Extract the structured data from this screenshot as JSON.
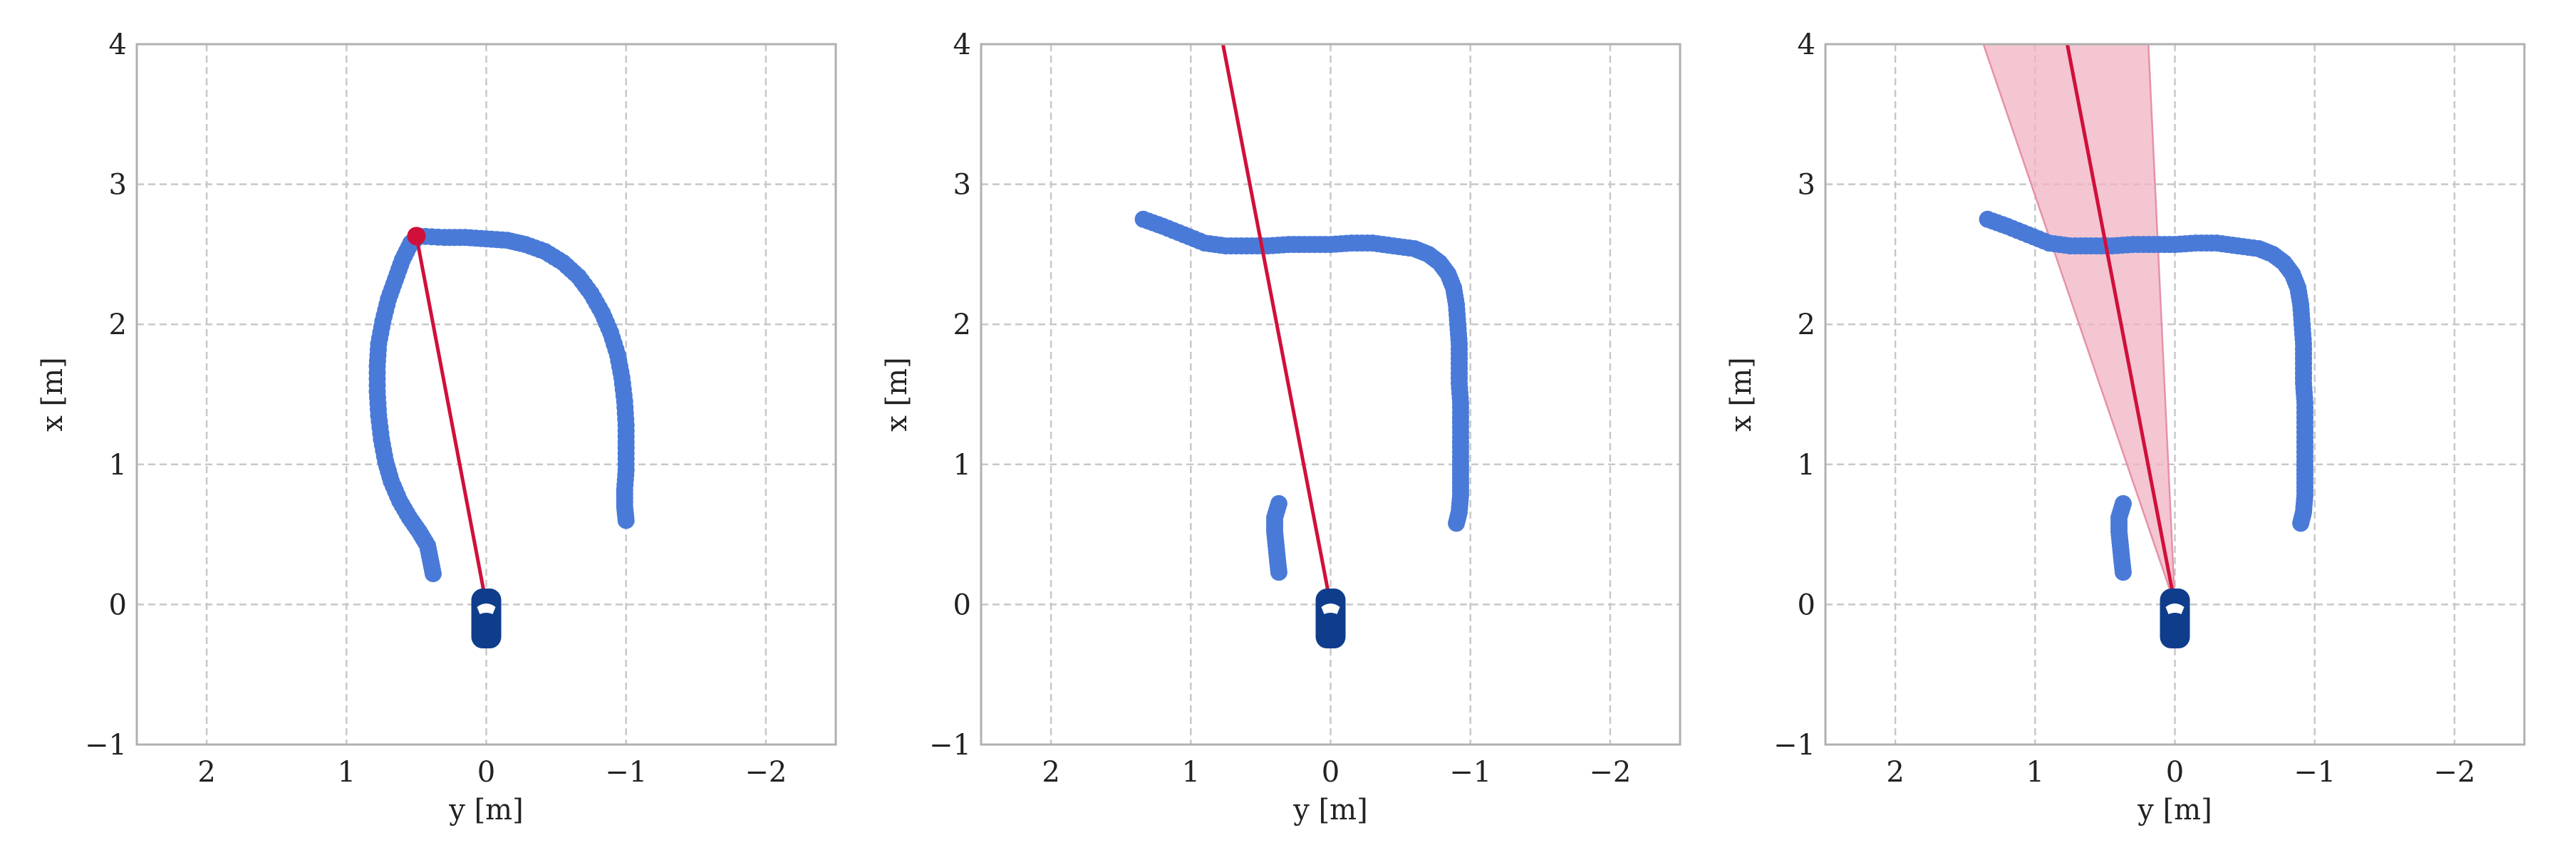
{
  "colors": {
    "trajectory": "#4a7ad8",
    "ray": "#d0103a",
    "cone_fill": "#f0b3c2",
    "cone_edge": "#e691a8",
    "car_body": "#0f3d8c",
    "car_window": "#ffffff",
    "grid": "#c8c8c8",
    "frame": "#b0b0b0"
  },
  "chart_data": [
    {
      "type": "scatter",
      "title": "",
      "xlabel": "y [m]",
      "ylabel": "x [m]",
      "xlim": [
        2.5,
        -2.5
      ],
      "ylim": [
        -1,
        4
      ],
      "xticks": [
        2,
        1,
        0,
        -1,
        -2
      ],
      "xtick_labels": [
        "2",
        "1",
        "0",
        "−1",
        "−2"
      ],
      "yticks": [
        -1,
        0,
        1,
        2,
        3,
        4
      ],
      "ytick_labels": [
        "−1",
        "0",
        "1",
        "2",
        "3",
        "4"
      ],
      "grid": true,
      "series": [
        {
          "role": "trajectory",
          "points": [
            [
              0.38,
              0.22
            ],
            [
              0.4,
              0.32
            ],
            [
              0.42,
              0.42
            ],
            [
              0.48,
              0.52
            ],
            [
              0.55,
              0.62
            ],
            [
              0.62,
              0.74
            ],
            [
              0.68,
              0.88
            ],
            [
              0.72,
              1.02
            ],
            [
              0.75,
              1.18
            ],
            [
              0.77,
              1.35
            ],
            [
              0.78,
              1.52
            ],
            [
              0.78,
              1.7
            ],
            [
              0.77,
              1.86
            ],
            [
              0.74,
              2.02
            ],
            [
              0.7,
              2.18
            ],
            [
              0.65,
              2.32
            ],
            [
              0.6,
              2.46
            ],
            [
              0.54,
              2.58
            ],
            [
              0.48,
              2.63
            ],
            [
              0.3,
              2.62
            ],
            [
              0.15,
              2.62
            ],
            [
              0.0,
              2.61
            ],
            [
              -0.15,
              2.6
            ],
            [
              -0.28,
              2.57
            ],
            [
              -0.42,
              2.52
            ],
            [
              -0.55,
              2.44
            ],
            [
              -0.66,
              2.34
            ],
            [
              -0.75,
              2.22
            ],
            [
              -0.83,
              2.08
            ],
            [
              -0.89,
              1.94
            ],
            [
              -0.94,
              1.78
            ],
            [
              -0.97,
              1.62
            ],
            [
              -0.99,
              1.45
            ],
            [
              -1.0,
              1.28
            ],
            [
              -1.0,
              1.12
            ],
            [
              -1.0,
              0.96
            ],
            [
              -0.99,
              0.82
            ],
            [
              -0.99,
              0.7
            ],
            [
              -1.0,
              0.6
            ]
          ]
        }
      ],
      "highlight_point": [
        0.5,
        2.63
      ],
      "ray": [
        [
          0.0,
          0.0
        ],
        [
          0.5,
          2.63
        ]
      ],
      "car": [
        0.0,
        -0.1
      ]
    },
    {
      "type": "scatter",
      "title": "",
      "xlabel": "y [m]",
      "ylabel": "x [m]",
      "xlim": [
        2.5,
        -2.5
      ],
      "ylim": [
        -1,
        4
      ],
      "xticks": [
        2,
        1,
        0,
        -1,
        -2
      ],
      "xtick_labels": [
        "2",
        "1",
        "0",
        "−1",
        "−2"
      ],
      "yticks": [
        -1,
        0,
        1,
        2,
        3,
        4
      ],
      "ytick_labels": [
        "−1",
        "0",
        "1",
        "2",
        "3",
        "4"
      ],
      "grid": true,
      "series": [
        {
          "role": "trajectory",
          "points": [
            [
              1.34,
              2.75
            ],
            [
              1.2,
              2.7
            ],
            [
              1.05,
              2.64
            ],
            [
              0.9,
              2.58
            ],
            [
              0.75,
              2.56
            ],
            [
              0.6,
              2.56
            ],
            [
              0.45,
              2.56
            ],
            [
              0.3,
              2.57
            ],
            [
              0.15,
              2.57
            ],
            [
              0.0,
              2.57
            ],
            [
              -0.15,
              2.58
            ],
            [
              -0.3,
              2.58
            ],
            [
              -0.45,
              2.56
            ],
            [
              -0.6,
              2.54
            ],
            [
              -0.7,
              2.5
            ],
            [
              -0.78,
              2.44
            ],
            [
              -0.84,
              2.36
            ],
            [
              -0.88,
              2.26
            ],
            [
              -0.9,
              2.14
            ],
            [
              -0.91,
              2.0
            ],
            [
              -0.92,
              1.86
            ],
            [
              -0.92,
              1.72
            ],
            [
              -0.92,
              1.58
            ],
            [
              -0.93,
              1.44
            ],
            [
              -0.93,
              1.3
            ],
            [
              -0.93,
              1.16
            ],
            [
              -0.93,
              1.02
            ],
            [
              -0.93,
              0.9
            ],
            [
              -0.93,
              0.78
            ],
            [
              -0.92,
              0.66
            ],
            [
              -0.9,
              0.58
            ]
          ]
        },
        {
          "role": "trajectory",
          "points": [
            [
              0.37,
              0.72
            ],
            [
              0.4,
              0.62
            ],
            [
              0.4,
              0.52
            ],
            [
              0.39,
              0.42
            ],
            [
              0.38,
              0.32
            ],
            [
              0.37,
              0.23
            ]
          ]
        }
      ],
      "ray": [
        [
          0.0,
          0.0
        ],
        [
          0.77,
          4.0
        ]
      ],
      "car": [
        0.0,
        -0.1
      ]
    },
    {
      "type": "scatter",
      "title": "",
      "xlabel": "y [m]",
      "ylabel": "x [m]",
      "xlim": [
        2.5,
        -2.5
      ],
      "ylim": [
        -1,
        4
      ],
      "xticks": [
        2,
        1,
        0,
        -1,
        -2
      ],
      "xtick_labels": [
        "2",
        "1",
        "0",
        "−1",
        "−2"
      ],
      "yticks": [
        -1,
        0,
        1,
        2,
        3,
        4
      ],
      "ytick_labels": [
        "−1",
        "0",
        "1",
        "2",
        "3",
        "4"
      ],
      "grid": true,
      "series": [
        {
          "role": "trajectory",
          "points": [
            [
              1.34,
              2.75
            ],
            [
              1.2,
              2.7
            ],
            [
              1.05,
              2.64
            ],
            [
              0.9,
              2.58
            ],
            [
              0.75,
              2.56
            ],
            [
              0.6,
              2.56
            ],
            [
              0.45,
              2.56
            ],
            [
              0.3,
              2.57
            ],
            [
              0.15,
              2.57
            ],
            [
              0.0,
              2.57
            ],
            [
              -0.15,
              2.58
            ],
            [
              -0.3,
              2.58
            ],
            [
              -0.45,
              2.56
            ],
            [
              -0.6,
              2.54
            ],
            [
              -0.7,
              2.5
            ],
            [
              -0.78,
              2.44
            ],
            [
              -0.84,
              2.36
            ],
            [
              -0.88,
              2.26
            ],
            [
              -0.9,
              2.14
            ],
            [
              -0.91,
              2.0
            ],
            [
              -0.92,
              1.86
            ],
            [
              -0.92,
              1.72
            ],
            [
              -0.92,
              1.58
            ],
            [
              -0.93,
              1.44
            ],
            [
              -0.93,
              1.3
            ],
            [
              -0.93,
              1.16
            ],
            [
              -0.93,
              1.02
            ],
            [
              -0.93,
              0.9
            ],
            [
              -0.93,
              0.78
            ],
            [
              -0.92,
              0.66
            ],
            [
              -0.9,
              0.58
            ]
          ]
        },
        {
          "role": "trajectory",
          "points": [
            [
              0.37,
              0.72
            ],
            [
              0.4,
              0.62
            ],
            [
              0.4,
              0.52
            ],
            [
              0.39,
              0.42
            ],
            [
              0.38,
              0.32
            ],
            [
              0.37,
              0.23
            ]
          ]
        }
      ],
      "ray": [
        [
          0.0,
          0.0
        ],
        [
          0.77,
          4.0
        ]
      ],
      "cone": [
        [
          0.0,
          0.0
        ],
        [
          1.37,
          4.0
        ],
        [
          0.19,
          4.0
        ]
      ],
      "car": [
        0.0,
        -0.1
      ]
    }
  ]
}
